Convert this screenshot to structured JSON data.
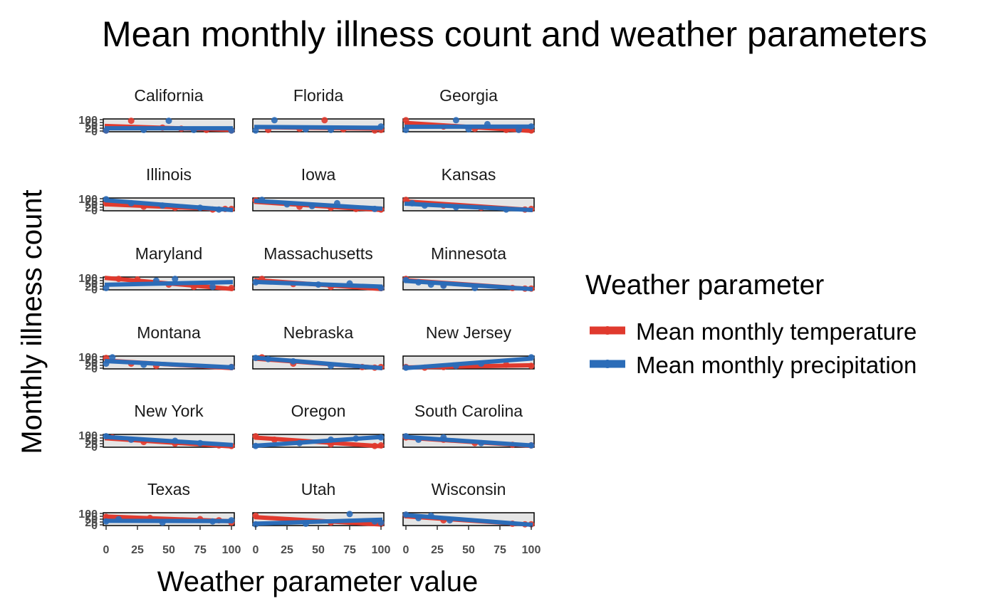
{
  "chart_data": {
    "type": "scatter",
    "title": "Mean monthly illness count and weather parameters",
    "xlabel": "Weather parameter value",
    "ylabel": "Monthly illness count",
    "xlim": [
      0,
      100
    ],
    "ylim": [
      0,
      100
    ],
    "x_ticks": [
      "0",
      "25",
      "50",
      "75",
      "100"
    ],
    "y_ticks": [
      "0",
      "25",
      "50",
      "75",
      "100"
    ],
    "grid": false,
    "legend": {
      "title": "Weather parameter",
      "position": "right",
      "entries": [
        {
          "label": "Mean monthly temperature",
          "color": "#e03a2e"
        },
        {
          "label": "Mean monthly precipitation",
          "color": "#2b6cb8"
        }
      ]
    },
    "colors": {
      "temperature": "#e03a2e",
      "precipitation": "#2b6cb8",
      "panel_bg": "#e5e5e5"
    },
    "panels": [
      {
        "name": "California",
        "temp": {
          "x": [
            0,
            20,
            45,
            60,
            80,
            100
          ],
          "y": [
            5,
            90,
            30,
            20,
            10,
            5
          ]
        },
        "precip": {
          "x": [
            0,
            30,
            50,
            70,
            100
          ],
          "y": [
            5,
            10,
            90,
            10,
            5
          ]
        }
      },
      {
        "name": "Florida",
        "temp": {
          "x": [
            10,
            35,
            55,
            70,
            95,
            100
          ],
          "y": [
            10,
            20,
            95,
            15,
            5,
            10
          ]
        },
        "precip": {
          "x": [
            0,
            15,
            40,
            60,
            100
          ],
          "y": [
            5,
            95,
            15,
            10,
            40
          ]
        }
      },
      {
        "name": "Georgia",
        "temp": {
          "x": [
            0,
            10,
            30,
            55,
            80,
            100
          ],
          "y": [
            95,
            50,
            40,
            20,
            10,
            5
          ]
        },
        "precip": {
          "x": [
            0,
            40,
            50,
            65,
            90,
            100
          ],
          "y": [
            10,
            95,
            15,
            60,
            10,
            40
          ]
        }
      },
      {
        "name": "Illinois",
        "temp": {
          "x": [
            0,
            30,
            55,
            85,
            95,
            100
          ],
          "y": [
            60,
            30,
            20,
            5,
            10,
            10
          ]
        },
        "precip": {
          "x": [
            0,
            20,
            45,
            75,
            90
          ],
          "y": [
            95,
            60,
            40,
            20,
            5
          ]
        }
      },
      {
        "name": "Iowa",
        "temp": {
          "x": [
            0,
            35,
            60,
            80,
            100
          ],
          "y": [
            85,
            30,
            20,
            10,
            5
          ]
        },
        "precip": {
          "x": [
            5,
            25,
            45,
            65,
            95
          ],
          "y": [
            90,
            50,
            35,
            60,
            10
          ]
        }
      },
      {
        "name": "Kansas",
        "temp": {
          "x": [
            0,
            30,
            60,
            95,
            100
          ],
          "y": [
            90,
            40,
            20,
            5,
            10
          ]
        },
        "precip": {
          "x": [
            5,
            15,
            40,
            80
          ],
          "y": [
            60,
            40,
            25,
            5
          ]
        }
      },
      {
        "name": "Maryland",
        "temp": {
          "x": [
            10,
            25,
            50,
            70,
            100
          ],
          "y": [
            90,
            85,
            40,
            20,
            10
          ]
        },
        "precip": {
          "x": [
            0,
            40,
            55,
            85
          ],
          "y": [
            10,
            75,
            90,
            20
          ]
        }
      },
      {
        "name": "Massachusetts",
        "temp": {
          "x": [
            5,
            30,
            60,
            100
          ],
          "y": [
            90,
            45,
            20,
            10
          ]
        },
        "precip": {
          "x": [
            0,
            50,
            75,
            100
          ],
          "y": [
            60,
            40,
            50,
            10
          ]
        }
      },
      {
        "name": "Minnesota",
        "temp": {
          "x": [
            0,
            30,
            85,
            95,
            100
          ],
          "y": [
            90,
            40,
            10,
            5,
            5
          ]
        },
        "precip": {
          "x": [
            0,
            10,
            20,
            30,
            55
          ],
          "y": [
            80,
            60,
            40,
            30,
            10
          ]
        }
      },
      {
        "name": "Montana",
        "temp": {
          "x": [
            0,
            20,
            40,
            100
          ],
          "y": [
            90,
            40,
            20,
            10
          ]
        },
        "precip": {
          "x": [
            0,
            5,
            30,
            100
          ],
          "y": [
            40,
            95,
            30,
            10
          ]
        }
      },
      {
        "name": "Nebraska",
        "temp": {
          "x": [
            5,
            30,
            85,
            95,
            100
          ],
          "y": [
            95,
            40,
            10,
            5,
            10
          ]
        },
        "precip": {
          "x": [
            0,
            10,
            30,
            60
          ],
          "y": [
            90,
            80,
            60,
            20
          ]
        }
      },
      {
        "name": "New Jersey",
        "temp": {
          "x": [
            0,
            15,
            30,
            80,
            100
          ],
          "y": [
            10,
            5,
            10,
            30,
            20
          ]
        },
        "precip": {
          "x": [
            0,
            40,
            60,
            100
          ],
          "y": [
            5,
            20,
            40,
            95
          ]
        }
      },
      {
        "name": "New York",
        "temp": {
          "x": [
            5,
            30,
            55,
            90,
            100
          ],
          "y": [
            80,
            40,
            25,
            10,
            5
          ]
        },
        "precip": {
          "x": [
            0,
            20,
            55,
            75
          ],
          "y": [
            90,
            60,
            50,
            30
          ]
        }
      },
      {
        "name": "Oregon",
        "temp": {
          "x": [
            0,
            15,
            60,
            95,
            100
          ],
          "y": [
            90,
            60,
            20,
            5,
            10
          ]
        },
        "precip": {
          "x": [
            0,
            35,
            60,
            80,
            100
          ],
          "y": [
            5,
            30,
            60,
            70,
            80
          ]
        }
      },
      {
        "name": "South Carolina",
        "temp": {
          "x": [
            0,
            30,
            55,
            85,
            100
          ],
          "y": [
            80,
            60,
            30,
            15,
            10
          ]
        },
        "precip": {
          "x": [
            0,
            10,
            30,
            60,
            100
          ],
          "y": [
            90,
            60,
            80,
            30,
            10
          ]
        }
      },
      {
        "name": "Texas",
        "temp": {
          "x": [
            0,
            35,
            75,
            90,
            100
          ],
          "y": [
            70,
            60,
            50,
            40,
            20
          ]
        },
        "precip": {
          "x": [
            0,
            10,
            45,
            85,
            100
          ],
          "y": [
            30,
            50,
            20,
            30,
            40
          ]
        }
      },
      {
        "name": "Utah",
        "temp": {
          "x": [
            0,
            25,
            60,
            100
          ],
          "y": [
            80,
            40,
            20,
            10
          ]
        },
        "precip": {
          "x": [
            0,
            40,
            75,
            95,
            100
          ],
          "y": [
            5,
            10,
            95,
            30,
            20
          ]
        }
      },
      {
        "name": "Wisconsin",
        "temp": {
          "x": [
            0,
            30,
            85,
            95,
            100
          ],
          "y": [
            85,
            40,
            10,
            5,
            5
          ]
        },
        "precip": {
          "x": [
            0,
            10,
            20,
            35
          ],
          "y": [
            90,
            60,
            80,
            40
          ]
        }
      }
    ]
  }
}
